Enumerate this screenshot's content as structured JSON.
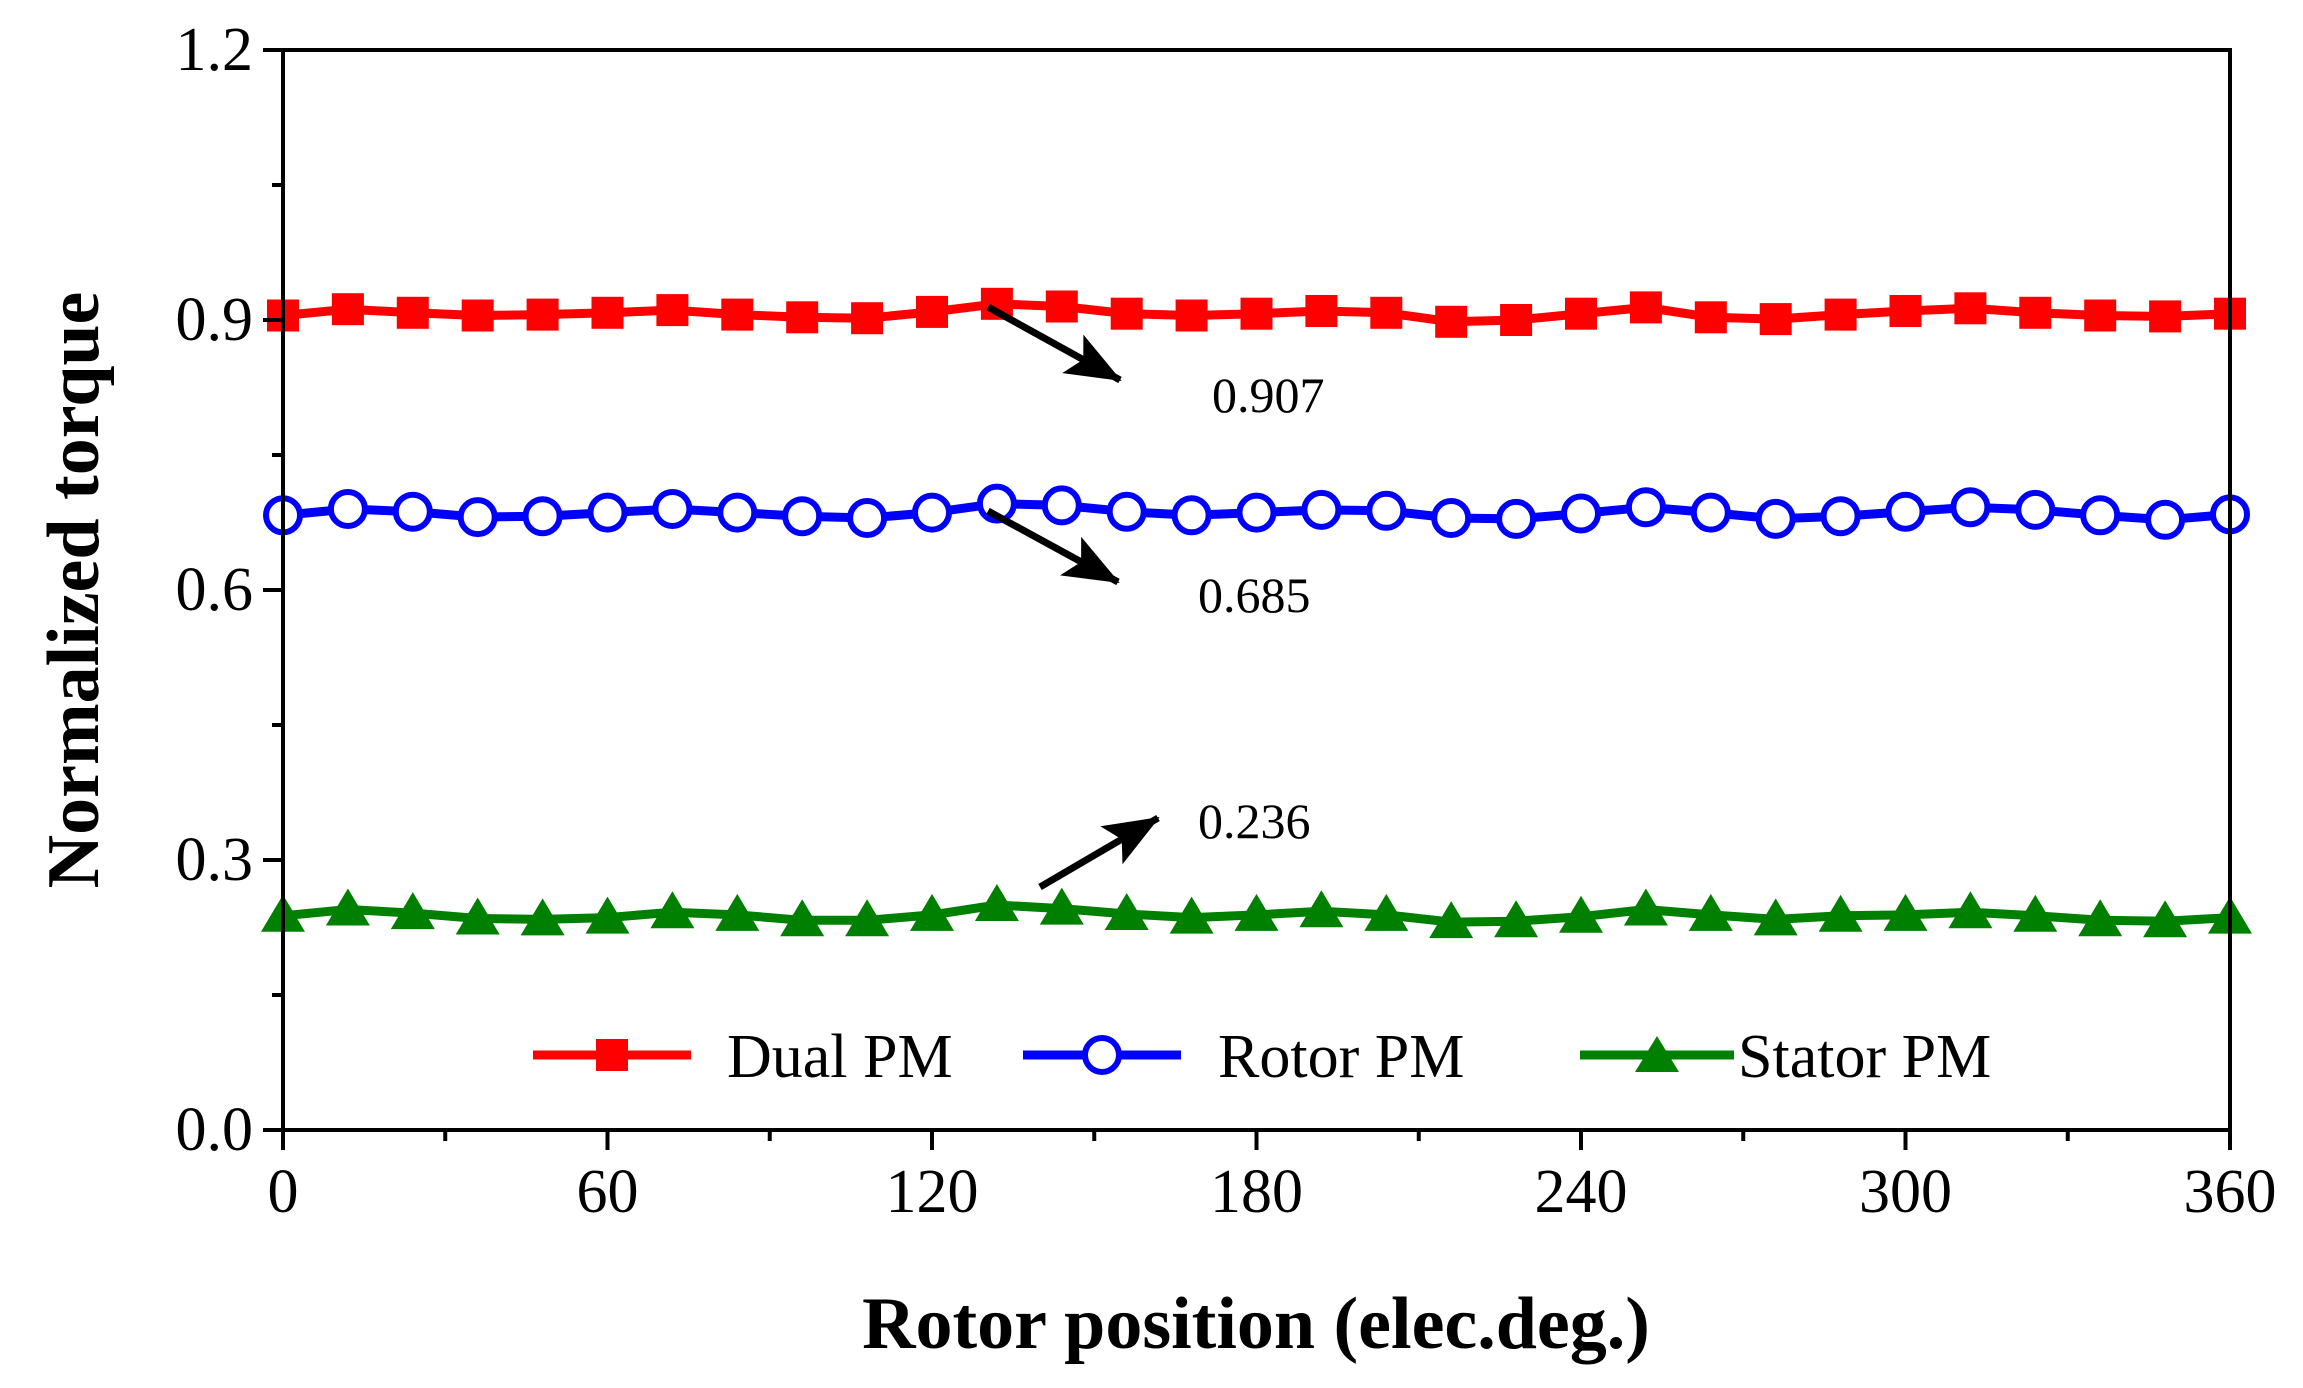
{
  "chart_data": {
    "type": "line",
    "title": "",
    "xlabel": "Rotor position (elec.deg.)",
    "ylabel": "Normalized torque",
    "xlim": [
      0,
      360
    ],
    "ylim": [
      0.0,
      1.2
    ],
    "xticks": [
      0,
      60,
      120,
      180,
      240,
      300,
      360
    ],
    "xtick_labels": [
      "0",
      "60",
      "120",
      "180",
      "240",
      "300",
      "360"
    ],
    "yticks": [
      0.0,
      0.3,
      0.6,
      0.9,
      1.2
    ],
    "ytick_labels": [
      "0.0",
      "0.3",
      "0.6",
      "0.9",
      "1.2"
    ],
    "grid": false,
    "legend_position": "bottom-center",
    "x": [
      0,
      12,
      24,
      36,
      48,
      60,
      72,
      84,
      96,
      108,
      120,
      132,
      144,
      156,
      168,
      180,
      192,
      204,
      216,
      228,
      240,
      252,
      264,
      276,
      288,
      300,
      312,
      324,
      336,
      348,
      360
    ],
    "series": [
      {
        "name": "Dual PM",
        "color": "#ff0000",
        "marker": "square",
        "values": [
          0.905,
          0.912,
          0.908,
          0.905,
          0.906,
          0.908,
          0.911,
          0.906,
          0.903,
          0.902,
          0.909,
          0.918,
          0.915,
          0.907,
          0.905,
          0.907,
          0.91,
          0.908,
          0.898,
          0.9,
          0.907,
          0.914,
          0.903,
          0.901,
          0.906,
          0.91,
          0.913,
          0.908,
          0.905,
          0.904,
          0.907
        ]
      },
      {
        "name": "Rotor PM",
        "color": "#0000ff",
        "marker": "open-circle",
        "values": [
          0.683,
          0.69,
          0.687,
          0.681,
          0.682,
          0.686,
          0.69,
          0.686,
          0.682,
          0.68,
          0.686,
          0.696,
          0.694,
          0.687,
          0.683,
          0.686,
          0.689,
          0.688,
          0.68,
          0.679,
          0.685,
          0.692,
          0.686,
          0.679,
          0.682,
          0.687,
          0.692,
          0.689,
          0.683,
          0.678,
          0.684
        ]
      },
      {
        "name": "Stator PM",
        "color": "#008000",
        "marker": "triangle",
        "values": [
          0.238,
          0.245,
          0.241,
          0.235,
          0.234,
          0.236,
          0.242,
          0.239,
          0.233,
          0.233,
          0.239,
          0.25,
          0.246,
          0.24,
          0.236,
          0.239,
          0.243,
          0.239,
          0.231,
          0.232,
          0.237,
          0.245,
          0.239,
          0.234,
          0.238,
          0.239,
          0.242,
          0.238,
          0.233,
          0.232,
          0.236
        ]
      }
    ],
    "annotations": [
      {
        "text": "0.907",
        "series": "Dual PM",
        "direction": "down-right"
      },
      {
        "text": "0.685",
        "series": "Rotor PM",
        "direction": "down-right"
      },
      {
        "text": "0.236",
        "series": "Stator PM",
        "direction": "up-right"
      }
    ]
  }
}
